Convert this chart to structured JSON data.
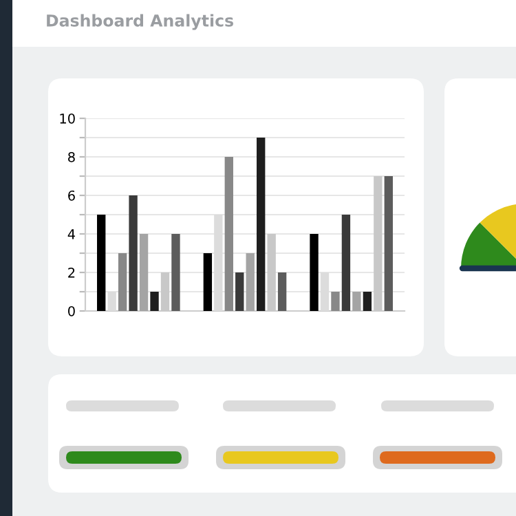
{
  "chart_data": {
    "type": "bar",
    "title": "Dashboard Analytics",
    "categories": [
      null,
      null,
      null
    ],
    "series": [
      {
        "color": "#000000",
        "values": [
          5,
          3,
          4
        ]
      },
      {
        "color": "#dcdcdc",
        "values": [
          1,
          5,
          2
        ]
      },
      {
        "color": "#888888",
        "values": [
          3,
          8,
          1
        ]
      },
      {
        "color": "#3a3a3a",
        "values": [
          6,
          2,
          5
        ]
      },
      {
        "color": "#a4a4a4",
        "values": [
          4,
          3,
          1
        ]
      },
      {
        "color": "#1e1e1e",
        "values": [
          1,
          9,
          1
        ]
      },
      {
        "color": "#c8c8c8",
        "values": [
          2,
          4,
          7
        ]
      },
      {
        "color": "#5c5c5c",
        "values": [
          4,
          2,
          7
        ]
      }
    ],
    "ylim": [
      0,
      10
    ],
    "yticks": [
      0,
      {
        "value": 1,
        "label": null
      },
      2,
      {
        "value": 3,
        "label": null
      },
      4,
      {
        "value": 5,
        "label": null
      },
      6,
      {
        "value": 7,
        "label": null
      },
      8,
      {
        "value": 9,
        "label": null
      },
      10
    ],
    "grid": "y",
    "legend": false
  }
}
